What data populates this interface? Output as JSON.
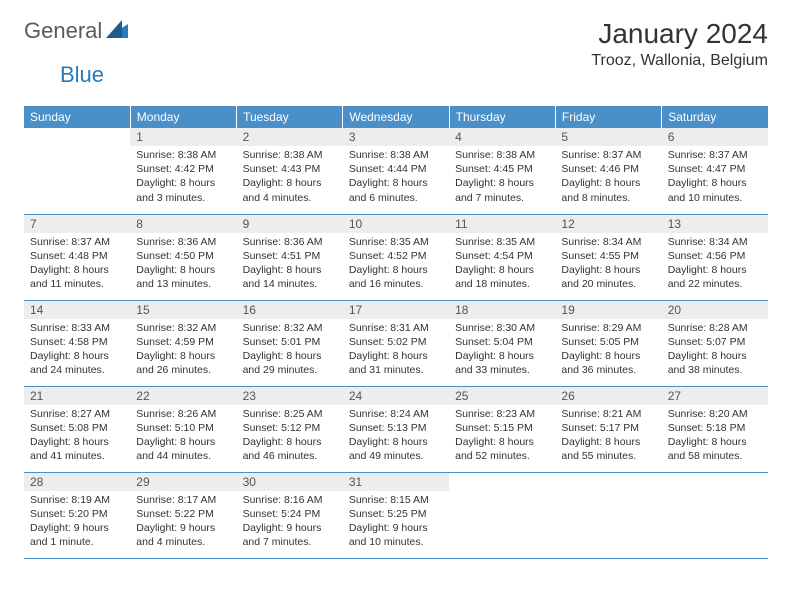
{
  "brand": {
    "general": "General",
    "blue": "Blue"
  },
  "title": "January 2024",
  "location": "Trooz, Wallonia, Belgium",
  "colors": {
    "header_bg": "#4a8fc7",
    "header_text": "#ffffff",
    "daynum_bg": "#ededed",
    "border": "#4a8fc7",
    "brand_blue": "#2a7ab8",
    "brand_gray": "#5a5a5a"
  },
  "weekdays": [
    "Sunday",
    "Monday",
    "Tuesday",
    "Wednesday",
    "Thursday",
    "Friday",
    "Saturday"
  ],
  "weeks": [
    [
      {
        "n": "",
        "lines": [
          "",
          "",
          "",
          ""
        ]
      },
      {
        "n": "1",
        "lines": [
          "Sunrise: 8:38 AM",
          "Sunset: 4:42 PM",
          "Daylight: 8 hours",
          "and 3 minutes."
        ]
      },
      {
        "n": "2",
        "lines": [
          "Sunrise: 8:38 AM",
          "Sunset: 4:43 PM",
          "Daylight: 8 hours",
          "and 4 minutes."
        ]
      },
      {
        "n": "3",
        "lines": [
          "Sunrise: 8:38 AM",
          "Sunset: 4:44 PM",
          "Daylight: 8 hours",
          "and 6 minutes."
        ]
      },
      {
        "n": "4",
        "lines": [
          "Sunrise: 8:38 AM",
          "Sunset: 4:45 PM",
          "Daylight: 8 hours",
          "and 7 minutes."
        ]
      },
      {
        "n": "5",
        "lines": [
          "Sunrise: 8:37 AM",
          "Sunset: 4:46 PM",
          "Daylight: 8 hours",
          "and 8 minutes."
        ]
      },
      {
        "n": "6",
        "lines": [
          "Sunrise: 8:37 AM",
          "Sunset: 4:47 PM",
          "Daylight: 8 hours",
          "and 10 minutes."
        ]
      }
    ],
    [
      {
        "n": "7",
        "lines": [
          "Sunrise: 8:37 AM",
          "Sunset: 4:48 PM",
          "Daylight: 8 hours",
          "and 11 minutes."
        ]
      },
      {
        "n": "8",
        "lines": [
          "Sunrise: 8:36 AM",
          "Sunset: 4:50 PM",
          "Daylight: 8 hours",
          "and 13 minutes."
        ]
      },
      {
        "n": "9",
        "lines": [
          "Sunrise: 8:36 AM",
          "Sunset: 4:51 PM",
          "Daylight: 8 hours",
          "and 14 minutes."
        ]
      },
      {
        "n": "10",
        "lines": [
          "Sunrise: 8:35 AM",
          "Sunset: 4:52 PM",
          "Daylight: 8 hours",
          "and 16 minutes."
        ]
      },
      {
        "n": "11",
        "lines": [
          "Sunrise: 8:35 AM",
          "Sunset: 4:54 PM",
          "Daylight: 8 hours",
          "and 18 minutes."
        ]
      },
      {
        "n": "12",
        "lines": [
          "Sunrise: 8:34 AM",
          "Sunset: 4:55 PM",
          "Daylight: 8 hours",
          "and 20 minutes."
        ]
      },
      {
        "n": "13",
        "lines": [
          "Sunrise: 8:34 AM",
          "Sunset: 4:56 PM",
          "Daylight: 8 hours",
          "and 22 minutes."
        ]
      }
    ],
    [
      {
        "n": "14",
        "lines": [
          "Sunrise: 8:33 AM",
          "Sunset: 4:58 PM",
          "Daylight: 8 hours",
          "and 24 minutes."
        ]
      },
      {
        "n": "15",
        "lines": [
          "Sunrise: 8:32 AM",
          "Sunset: 4:59 PM",
          "Daylight: 8 hours",
          "and 26 minutes."
        ]
      },
      {
        "n": "16",
        "lines": [
          "Sunrise: 8:32 AM",
          "Sunset: 5:01 PM",
          "Daylight: 8 hours",
          "and 29 minutes."
        ]
      },
      {
        "n": "17",
        "lines": [
          "Sunrise: 8:31 AM",
          "Sunset: 5:02 PM",
          "Daylight: 8 hours",
          "and 31 minutes."
        ]
      },
      {
        "n": "18",
        "lines": [
          "Sunrise: 8:30 AM",
          "Sunset: 5:04 PM",
          "Daylight: 8 hours",
          "and 33 minutes."
        ]
      },
      {
        "n": "19",
        "lines": [
          "Sunrise: 8:29 AM",
          "Sunset: 5:05 PM",
          "Daylight: 8 hours",
          "and 36 minutes."
        ]
      },
      {
        "n": "20",
        "lines": [
          "Sunrise: 8:28 AM",
          "Sunset: 5:07 PM",
          "Daylight: 8 hours",
          "and 38 minutes."
        ]
      }
    ],
    [
      {
        "n": "21",
        "lines": [
          "Sunrise: 8:27 AM",
          "Sunset: 5:08 PM",
          "Daylight: 8 hours",
          "and 41 minutes."
        ]
      },
      {
        "n": "22",
        "lines": [
          "Sunrise: 8:26 AM",
          "Sunset: 5:10 PM",
          "Daylight: 8 hours",
          "and 44 minutes."
        ]
      },
      {
        "n": "23",
        "lines": [
          "Sunrise: 8:25 AM",
          "Sunset: 5:12 PM",
          "Daylight: 8 hours",
          "and 46 minutes."
        ]
      },
      {
        "n": "24",
        "lines": [
          "Sunrise: 8:24 AM",
          "Sunset: 5:13 PM",
          "Daylight: 8 hours",
          "and 49 minutes."
        ]
      },
      {
        "n": "25",
        "lines": [
          "Sunrise: 8:23 AM",
          "Sunset: 5:15 PM",
          "Daylight: 8 hours",
          "and 52 minutes."
        ]
      },
      {
        "n": "26",
        "lines": [
          "Sunrise: 8:21 AM",
          "Sunset: 5:17 PM",
          "Daylight: 8 hours",
          "and 55 minutes."
        ]
      },
      {
        "n": "27",
        "lines": [
          "Sunrise: 8:20 AM",
          "Sunset: 5:18 PM",
          "Daylight: 8 hours",
          "and 58 minutes."
        ]
      }
    ],
    [
      {
        "n": "28",
        "lines": [
          "Sunrise: 8:19 AM",
          "Sunset: 5:20 PM",
          "Daylight: 9 hours",
          "and 1 minute."
        ]
      },
      {
        "n": "29",
        "lines": [
          "Sunrise: 8:17 AM",
          "Sunset: 5:22 PM",
          "Daylight: 9 hours",
          "and 4 minutes."
        ]
      },
      {
        "n": "30",
        "lines": [
          "Sunrise: 8:16 AM",
          "Sunset: 5:24 PM",
          "Daylight: 9 hours",
          "and 7 minutes."
        ]
      },
      {
        "n": "31",
        "lines": [
          "Sunrise: 8:15 AM",
          "Sunset: 5:25 PM",
          "Daylight: 9 hours",
          "and 10 minutes."
        ]
      },
      {
        "n": "",
        "lines": [
          "",
          "",
          "",
          ""
        ]
      },
      {
        "n": "",
        "lines": [
          "",
          "",
          "",
          ""
        ]
      },
      {
        "n": "",
        "lines": [
          "",
          "",
          "",
          ""
        ]
      }
    ]
  ]
}
